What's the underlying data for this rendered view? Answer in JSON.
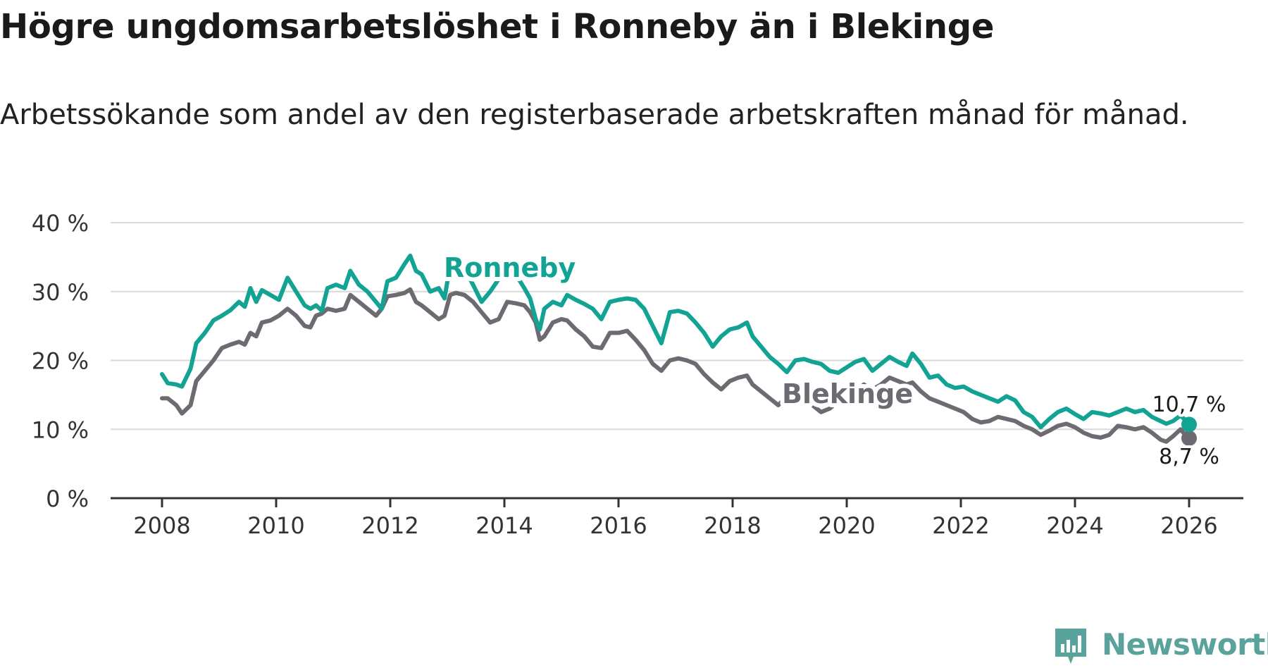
{
  "header": {
    "title": "Högre ungdomsarbetslöshet i Ronneby än i Blekinge",
    "subtitle": "Arbetssökande som andel av den registerbaserade arbetskraften månad för månad."
  },
  "brand": {
    "name": "Newsworthy",
    "icon": "bar-chart-bubble-icon"
  },
  "colors": {
    "ronneby": "#12a394",
    "blekinge": "#6d6a71",
    "grid": "#d9d9d9",
    "axis": "#333333",
    "brand": "#5aa39c"
  },
  "chart_data": {
    "type": "line",
    "title": "Högre ungdomsarbetslöshet i Ronneby än i Blekinge",
    "xlabel": "",
    "ylabel": "",
    "ylim": [
      0,
      40
    ],
    "yticks": [
      0,
      10,
      20,
      30,
      40
    ],
    "ytick_labels": [
      "0 %",
      "10 %",
      "20 %",
      "30 %",
      "40 %"
    ],
    "xlim": [
      2007.1,
      2026.9
    ],
    "xticks": [
      2008,
      2010,
      2012,
      2014,
      2016,
      2018,
      2020,
      2022,
      2024,
      2026
    ],
    "xtick_labels": [
      "2008",
      "2010",
      "2012",
      "2014",
      "2016",
      "2018",
      "2020",
      "2022",
      "2024",
      "2026"
    ],
    "grid": true,
    "series": [
      {
        "name": "Ronneby",
        "label": "Ronneby",
        "last_label": "10,7 %",
        "points": [
          [
            2008.0,
            18.0
          ],
          [
            2008.1,
            16.7
          ],
          [
            2008.25,
            16.5
          ],
          [
            2008.35,
            16.2
          ],
          [
            2008.5,
            18.8
          ],
          [
            2008.6,
            22.5
          ],
          [
            2008.75,
            24.0
          ],
          [
            2008.9,
            25.8
          ],
          [
            2009.05,
            26.5
          ],
          [
            2009.2,
            27.3
          ],
          [
            2009.35,
            28.5
          ],
          [
            2009.45,
            27.8
          ],
          [
            2009.55,
            30.5
          ],
          [
            2009.65,
            28.5
          ],
          [
            2009.75,
            30.2
          ],
          [
            2009.9,
            29.5
          ],
          [
            2010.05,
            28.8
          ],
          [
            2010.2,
            32.0
          ],
          [
            2010.35,
            30.0
          ],
          [
            2010.5,
            28.0
          ],
          [
            2010.6,
            27.5
          ],
          [
            2010.7,
            28.0
          ],
          [
            2010.8,
            27.2
          ],
          [
            2010.9,
            30.5
          ],
          [
            2011.05,
            31.0
          ],
          [
            2011.2,
            30.5
          ],
          [
            2011.3,
            33.0
          ],
          [
            2011.45,
            31.0
          ],
          [
            2011.6,
            30.0
          ],
          [
            2011.75,
            28.5
          ],
          [
            2011.85,
            27.5
          ],
          [
            2011.95,
            31.5
          ],
          [
            2012.1,
            32.0
          ],
          [
            2012.25,
            34.0
          ],
          [
            2012.35,
            35.2
          ],
          [
            2012.45,
            33.0
          ],
          [
            2012.55,
            32.5
          ],
          [
            2012.7,
            30.0
          ],
          [
            2012.85,
            30.5
          ],
          [
            2012.95,
            29.0
          ],
          [
            2013.05,
            33.8
          ],
          [
            2013.15,
            34.5
          ],
          [
            2013.3,
            33.5
          ],
          [
            2013.45,
            31.0
          ],
          [
            2013.6,
            28.5
          ],
          [
            2013.75,
            30.0
          ],
          [
            2013.9,
            31.8
          ],
          [
            2014.05,
            33.5
          ],
          [
            2014.2,
            32.5
          ],
          [
            2014.35,
            30.5
          ],
          [
            2014.45,
            29.0
          ],
          [
            2014.55,
            26.0
          ],
          [
            2014.62,
            24.5
          ],
          [
            2014.7,
            27.5
          ],
          [
            2014.85,
            28.5
          ],
          [
            2015.0,
            28.0
          ],
          [
            2015.1,
            29.5
          ],
          [
            2015.25,
            28.8
          ],
          [
            2015.4,
            28.2
          ],
          [
            2015.55,
            27.5
          ],
          [
            2015.7,
            26.0
          ],
          [
            2015.85,
            28.5
          ],
          [
            2016.0,
            28.8
          ],
          [
            2016.15,
            29.0
          ],
          [
            2016.3,
            28.8
          ],
          [
            2016.45,
            27.5
          ],
          [
            2016.6,
            25.0
          ],
          [
            2016.75,
            22.5
          ],
          [
            2016.9,
            27.0
          ],
          [
            2017.05,
            27.2
          ],
          [
            2017.2,
            26.8
          ],
          [
            2017.35,
            25.5
          ],
          [
            2017.5,
            24.0
          ],
          [
            2017.65,
            22.0
          ],
          [
            2017.8,
            23.5
          ],
          [
            2017.95,
            24.5
          ],
          [
            2018.1,
            24.8
          ],
          [
            2018.25,
            25.5
          ],
          [
            2018.35,
            23.5
          ],
          [
            2018.5,
            22.0
          ],
          [
            2018.65,
            20.5
          ],
          [
            2018.8,
            19.5
          ],
          [
            2018.95,
            18.3
          ],
          [
            2019.1,
            20.0
          ],
          [
            2019.25,
            20.2
          ],
          [
            2019.4,
            19.8
          ],
          [
            2019.55,
            19.5
          ],
          [
            2019.7,
            18.5
          ],
          [
            2019.85,
            18.2
          ],
          [
            2020.0,
            19.0
          ],
          [
            2020.15,
            19.8
          ],
          [
            2020.3,
            20.2
          ],
          [
            2020.45,
            18.5
          ],
          [
            2020.6,
            19.5
          ],
          [
            2020.75,
            20.5
          ],
          [
            2020.9,
            19.8
          ],
          [
            2021.05,
            19.2
          ],
          [
            2021.15,
            21.0
          ],
          [
            2021.3,
            19.5
          ],
          [
            2021.45,
            17.5
          ],
          [
            2021.6,
            17.8
          ],
          [
            2021.75,
            16.5
          ],
          [
            2021.9,
            16.0
          ],
          [
            2022.05,
            16.2
          ],
          [
            2022.2,
            15.5
          ],
          [
            2022.35,
            15.0
          ],
          [
            2022.5,
            14.5
          ],
          [
            2022.65,
            14.0
          ],
          [
            2022.8,
            14.8
          ],
          [
            2022.95,
            14.2
          ],
          [
            2023.1,
            12.5
          ],
          [
            2023.25,
            11.8
          ],
          [
            2023.4,
            10.3
          ],
          [
            2023.55,
            11.5
          ],
          [
            2023.7,
            12.5
          ],
          [
            2023.85,
            13.0
          ],
          [
            2024.0,
            12.2
          ],
          [
            2024.15,
            11.5
          ],
          [
            2024.3,
            12.5
          ],
          [
            2024.45,
            12.3
          ],
          [
            2024.6,
            12.0
          ],
          [
            2024.75,
            12.5
          ],
          [
            2024.9,
            13.0
          ],
          [
            2025.05,
            12.5
          ],
          [
            2025.2,
            12.8
          ],
          [
            2025.35,
            11.8
          ],
          [
            2025.5,
            11.2
          ],
          [
            2025.6,
            10.8
          ],
          [
            2025.72,
            11.2
          ],
          [
            2025.85,
            12.0
          ],
          [
            2025.95,
            11.2
          ],
          [
            2026.0,
            10.7
          ]
        ]
      },
      {
        "name": "Blekinge",
        "label": "Blekinge",
        "last_label": "8,7 %",
        "points": [
          [
            2008.0,
            14.5
          ],
          [
            2008.1,
            14.5
          ],
          [
            2008.25,
            13.5
          ],
          [
            2008.35,
            12.3
          ],
          [
            2008.5,
            13.5
          ],
          [
            2008.6,
            17.0
          ],
          [
            2008.75,
            18.5
          ],
          [
            2008.9,
            20.0
          ],
          [
            2009.05,
            21.8
          ],
          [
            2009.2,
            22.3
          ],
          [
            2009.35,
            22.7
          ],
          [
            2009.45,
            22.3
          ],
          [
            2009.55,
            24.0
          ],
          [
            2009.65,
            23.5
          ],
          [
            2009.75,
            25.5
          ],
          [
            2009.9,
            25.8
          ],
          [
            2010.05,
            26.5
          ],
          [
            2010.2,
            27.5
          ],
          [
            2010.35,
            26.5
          ],
          [
            2010.5,
            25.0
          ],
          [
            2010.6,
            24.8
          ],
          [
            2010.7,
            26.5
          ],
          [
            2010.8,
            26.8
          ],
          [
            2010.9,
            27.5
          ],
          [
            2011.05,
            27.2
          ],
          [
            2011.2,
            27.5
          ],
          [
            2011.3,
            29.5
          ],
          [
            2011.45,
            28.5
          ],
          [
            2011.6,
            27.5
          ],
          [
            2011.75,
            26.5
          ],
          [
            2011.85,
            27.5
          ],
          [
            2011.95,
            29.3
          ],
          [
            2012.1,
            29.5
          ],
          [
            2012.25,
            29.8
          ],
          [
            2012.35,
            30.3
          ],
          [
            2012.45,
            28.5
          ],
          [
            2012.55,
            28.0
          ],
          [
            2012.7,
            27.0
          ],
          [
            2012.85,
            26.0
          ],
          [
            2012.95,
            26.5
          ],
          [
            2013.05,
            29.5
          ],
          [
            2013.15,
            29.8
          ],
          [
            2013.3,
            29.5
          ],
          [
            2013.45,
            28.5
          ],
          [
            2013.6,
            27.0
          ],
          [
            2013.75,
            25.5
          ],
          [
            2013.9,
            26.0
          ],
          [
            2014.05,
            28.5
          ],
          [
            2014.2,
            28.3
          ],
          [
            2014.35,
            28.0
          ],
          [
            2014.45,
            27.0
          ],
          [
            2014.55,
            25.5
          ],
          [
            2014.62,
            23.0
          ],
          [
            2014.7,
            23.5
          ],
          [
            2014.85,
            25.5
          ],
          [
            2015.0,
            26.0
          ],
          [
            2015.1,
            25.8
          ],
          [
            2015.25,
            24.5
          ],
          [
            2015.4,
            23.5
          ],
          [
            2015.55,
            22.0
          ],
          [
            2015.7,
            21.8
          ],
          [
            2015.85,
            24.0
          ],
          [
            2016.0,
            24.0
          ],
          [
            2016.15,
            24.3
          ],
          [
            2016.3,
            23.0
          ],
          [
            2016.45,
            21.5
          ],
          [
            2016.6,
            19.5
          ],
          [
            2016.75,
            18.5
          ],
          [
            2016.9,
            20.0
          ],
          [
            2017.05,
            20.3
          ],
          [
            2017.2,
            20.0
          ],
          [
            2017.35,
            19.5
          ],
          [
            2017.5,
            18.0
          ],
          [
            2017.65,
            16.8
          ],
          [
            2017.8,
            15.8
          ],
          [
            2017.95,
            17.0
          ],
          [
            2018.1,
            17.5
          ],
          [
            2018.25,
            17.8
          ],
          [
            2018.35,
            16.5
          ],
          [
            2018.5,
            15.5
          ],
          [
            2018.65,
            14.5
          ],
          [
            2018.8,
            13.5
          ],
          [
            2018.95,
            14.8
          ],
          [
            2019.1,
            15.0
          ],
          [
            2019.25,
            14.5
          ],
          [
            2019.4,
            13.5
          ],
          [
            2019.55,
            12.5
          ],
          [
            2019.7,
            13.0
          ],
          [
            2019.85,
            14.0
          ],
          [
            2020.0,
            15.0
          ],
          [
            2020.15,
            15.5
          ],
          [
            2020.3,
            16.5
          ],
          [
            2020.45,
            15.8
          ],
          [
            2020.6,
            16.5
          ],
          [
            2020.75,
            17.5
          ],
          [
            2020.9,
            17.0
          ],
          [
            2021.05,
            16.5
          ],
          [
            2021.15,
            16.8
          ],
          [
            2021.3,
            15.5
          ],
          [
            2021.45,
            14.5
          ],
          [
            2021.6,
            14.0
          ],
          [
            2021.75,
            13.5
          ],
          [
            2021.9,
            13.0
          ],
          [
            2022.05,
            12.5
          ],
          [
            2022.2,
            11.5
          ],
          [
            2022.35,
            11.0
          ],
          [
            2022.5,
            11.2
          ],
          [
            2022.65,
            11.8
          ],
          [
            2022.8,
            11.5
          ],
          [
            2022.95,
            11.2
          ],
          [
            2023.1,
            10.5
          ],
          [
            2023.25,
            10.0
          ],
          [
            2023.4,
            9.2
          ],
          [
            2023.55,
            9.8
          ],
          [
            2023.7,
            10.5
          ],
          [
            2023.85,
            10.8
          ],
          [
            2024.0,
            10.3
          ],
          [
            2024.15,
            9.5
          ],
          [
            2024.3,
            9.0
          ],
          [
            2024.45,
            8.8
          ],
          [
            2024.6,
            9.2
          ],
          [
            2024.75,
            10.5
          ],
          [
            2024.9,
            10.3
          ],
          [
            2025.05,
            10.0
          ],
          [
            2025.2,
            10.3
          ],
          [
            2025.35,
            9.5
          ],
          [
            2025.5,
            8.5
          ],
          [
            2025.6,
            8.2
          ],
          [
            2025.72,
            9.0
          ],
          [
            2025.85,
            10.0
          ],
          [
            2025.95,
            9.0
          ],
          [
            2026.0,
            8.7
          ]
        ]
      }
    ]
  }
}
